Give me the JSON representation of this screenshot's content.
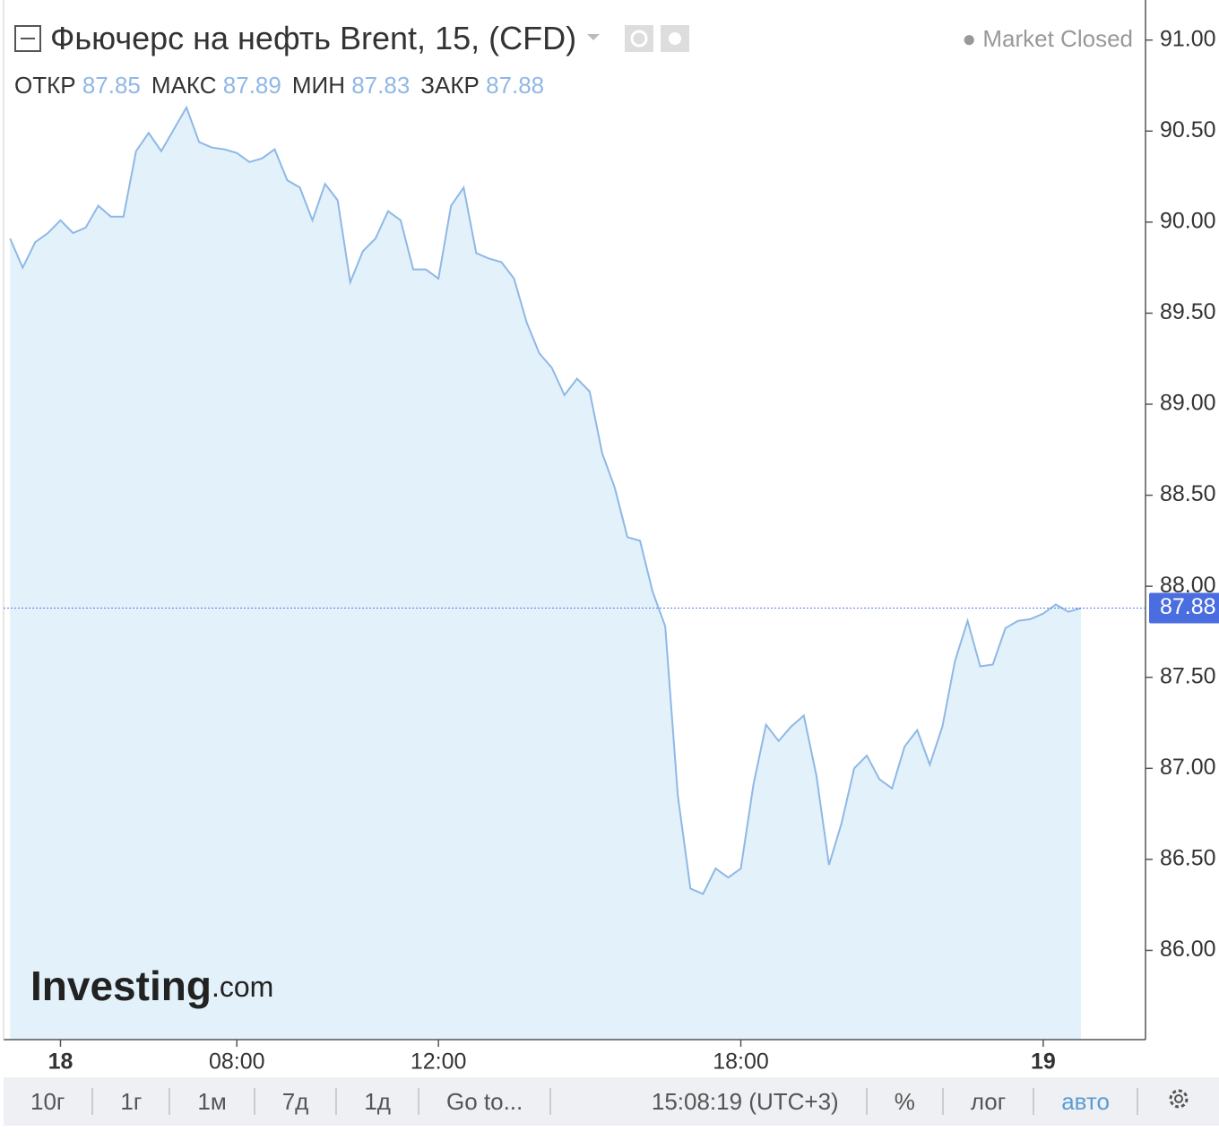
{
  "chart_data": {
    "type": "area",
    "title": "Фьючерс на нефть Brent, 15, (CFD)",
    "status": "Market Closed",
    "ohlc": [
      {
        "label": "ОТКР",
        "value": 87.85
      },
      {
        "label": "МАКС",
        "value": 87.89
      },
      {
        "label": "МИН",
        "value": 87.83
      },
      {
        "label": "ЗАКР",
        "value": 87.88
      }
    ],
    "last_price": 87.88,
    "watermark": [
      "Investing",
      ".com"
    ],
    "color": "#8fb8e6",
    "fill": "#e3f1fa",
    "x": [
      3.5,
      3.75,
      4,
      4.25,
      4.5,
      4.75,
      5,
      5.25,
      5.5,
      5.75,
      6,
      6.25,
      6.5,
      6.75,
      7,
      7.25,
      7.5,
      7.75,
      8,
      8.25,
      8.5,
      8.75,
      9,
      9.25,
      9.5,
      9.75,
      10,
      10.25,
      10.5,
      10.75,
      11,
      11.25,
      11.5,
      11.75,
      12,
      12.25,
      12.5,
      12.75,
      13,
      13.25,
      13.5,
      13.75,
      14,
      14.25,
      14.5,
      14.75,
      15,
      15.25,
      15.5,
      15.75,
      16,
      16.25,
      16.5,
      16.75,
      17,
      17.25,
      17.5,
      17.75,
      18,
      18.25,
      18.5,
      18.75,
      19,
      19.25,
      19.5,
      19.75,
      20,
      20.25,
      20.5,
      20.75,
      21,
      21.25,
      21.5,
      21.75,
      22,
      22.25,
      22.5,
      22.75,
      23,
      23.25,
      23.5,
      23.75,
      24,
      24.25,
      24.5,
      24.75
    ],
    "values": [
      89.91,
      89.75,
      89.89,
      89.94,
      90.01,
      89.94,
      89.97,
      90.09,
      90.03,
      90.03,
      90.39,
      90.49,
      90.39,
      90.51,
      90.63,
      90.44,
      90.41,
      90.4,
      90.38,
      90.33,
      90.35,
      90.4,
      90.23,
      90.19,
      90.01,
      90.21,
      90.12,
      89.67,
      89.84,
      89.91,
      90.06,
      90.01,
      89.74,
      89.74,
      89.69,
      90.09,
      90.19,
      89.83,
      89.8,
      89.78,
      89.69,
      89.45,
      89.28,
      89.2,
      89.05,
      89.14,
      89.07,
      88.73,
      88.54,
      88.27,
      88.25,
      87.97,
      87.78,
      86.85,
      86.34,
      86.31,
      86.45,
      86.4,
      86.45,
      86.91,
      87.24,
      87.15,
      87.23,
      87.29,
      86.96,
      86.47,
      86.7,
      87.0,
      87.07,
      86.94,
      86.89,
      87.12,
      87.21,
      87.02,
      87.23,
      87.59,
      87.81,
      87.56,
      87.57,
      87.77,
      87.81,
      87.82,
      87.85,
      87.9,
      87.86,
      87.88
    ],
    "xlim": [
      3.3,
      26.03
    ],
    "xticks": [
      {
        "value": 4.5,
        "label": "18"
      },
      {
        "value": 8,
        "label": "08:00"
      },
      {
        "value": 12,
        "label": "12:00"
      },
      {
        "value": 18,
        "label": "18:00"
      },
      {
        "value": 24,
        "label": "19"
      }
    ],
    "ylim": [
      85.51,
      91.22
    ],
    "yticks": [
      {
        "value": 86,
        "label": "86.00"
      },
      {
        "value": 86.5,
        "label": "86.50"
      },
      {
        "value": 87,
        "label": "87.00"
      },
      {
        "value": 87.5,
        "label": "87.50"
      },
      {
        "value": 88,
        "label": "88.00"
      },
      {
        "value": 88.5,
        "label": "88.50"
      },
      {
        "value": 89,
        "label": "89.00"
      },
      {
        "value": 89.5,
        "label": "89.50"
      },
      {
        "value": 90,
        "label": "90.00"
      },
      {
        "value": 90.5,
        "label": "90.50"
      },
      {
        "value": 91,
        "label": "91.00"
      }
    ]
  },
  "toolbar": {
    "ranges": [
      "10г",
      "1г",
      "1м",
      "7д",
      "1д",
      "Go to..."
    ],
    "time": "15:08:19 (UTC+3)",
    "options": [
      "%",
      "лог",
      "авто"
    ]
  }
}
